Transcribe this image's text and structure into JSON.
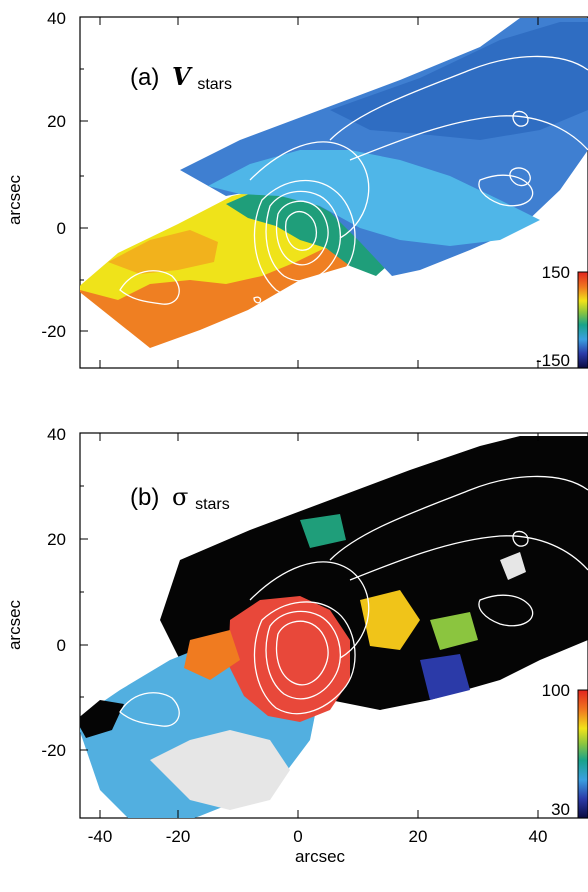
{
  "chart_data": [
    {
      "type": "heatmap",
      "panel_label": "(a)",
      "quantity_symbol": "V",
      "quantity_subscript": "stars",
      "ylabel": "arcsec",
      "xlim": [
        -45,
        60
      ],
      "ylim": [
        -38,
        40
      ],
      "xticks": [
        -40,
        -20,
        0,
        20,
        40
      ],
      "yticks": [
        -20,
        0,
        20,
        40
      ],
      "colorbar": {
        "min": -150,
        "max": 150,
        "min_label": "-150",
        "max_label": "150"
      },
      "overlay": "white intensity contours",
      "regions": [
        {
          "name": "north-east lobe",
          "value": -95,
          "color": "#3f7fd1"
        },
        {
          "name": "lighter blue zone",
          "value": -60,
          "color": "#4fb6e8"
        },
        {
          "name": "central green/teal",
          "value": 0,
          "color": "#1f9e7a"
        },
        {
          "name": "yellow band",
          "value": 70,
          "color": "#efe31a"
        },
        {
          "name": "south-west lobe",
          "value": 95,
          "color": "#ef7f22"
        }
      ]
    },
    {
      "type": "heatmap",
      "panel_label": "(b)",
      "quantity_symbol": "σ",
      "quantity_subscript": "stars",
      "xlabel": "arcsec",
      "ylabel": "arcsec",
      "xlim": [
        -45,
        60
      ],
      "ylim": [
        -38,
        40
      ],
      "xticks": [
        -40,
        -20,
        0,
        20,
        40
      ],
      "yticks": [
        -20,
        0,
        20,
        40
      ],
      "colorbar": {
        "min": 30,
        "max": 100,
        "min_label": "30",
        "max_label": "100"
      },
      "overlay": "white intensity contours",
      "regions": [
        {
          "name": "outer north-east",
          "value": 30,
          "color": "#050505"
        },
        {
          "name": "nucleus",
          "value": 95,
          "color": "#e8483a"
        },
        {
          "name": "south-west light-blue",
          "value": 55,
          "color": "#52afe0"
        },
        {
          "name": "south-west grey",
          "value": 100,
          "color": "#e6e6e6"
        },
        {
          "name": "mixed bins",
          "value": 75,
          "color": "#f0c419"
        }
      ]
    }
  ]
}
